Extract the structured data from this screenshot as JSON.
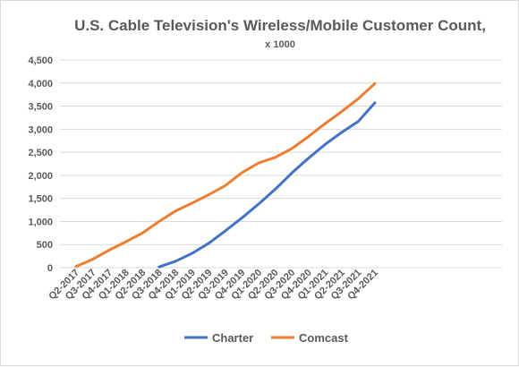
{
  "chart_data": {
    "type": "line",
    "title": "U.S. Cable Television's  Wireless/Mobile  Customer  Count,",
    "subtitle": "x 1000",
    "xlabel": "",
    "ylabel": "",
    "ylim": [
      0,
      4500
    ],
    "y_ticks": [
      0,
      500,
      1000,
      1500,
      2000,
      2500,
      3000,
      3500,
      4000,
      4500
    ],
    "y_tick_labels": [
      "0",
      "500",
      "1,000",
      "1,500",
      "2,000",
      "2,500",
      "3,000",
      "3,500",
      "4,000",
      "4,500"
    ],
    "grid": true,
    "legend_position": "bottom",
    "categories": [
      "Q2-2017",
      "Q3-2017",
      "Q4-2017",
      "Q1-2018",
      "Q2-2018",
      "Q3-2018",
      "Q4-2018",
      "Q1-2019",
      "Q2-2019",
      "Q3-2019",
      "Q4-2019",
      "Q1-2020",
      "Q2-2020",
      "Q3-2020",
      "Q4-2020",
      "Q1-2021",
      "Q2-2021",
      "Q3-2021",
      "Q4-2021"
    ],
    "series": [
      {
        "name": "Charter",
        "color": "#4472c4",
        "values": [
          null,
          null,
          null,
          null,
          null,
          15,
          140,
          310,
          530,
          800,
          1080,
          1380,
          1700,
          2050,
          2370,
          2670,
          2930,
          3170,
          3570
        ]
      },
      {
        "name": "Comcast",
        "color": "#ed7d31",
        "values": [
          25,
          180,
          380,
          560,
          750,
          1000,
          1230,
          1400,
          1580,
          1780,
          2060,
          2270,
          2390,
          2580,
          2840,
          3120,
          3380,
          3660,
          3990
        ]
      }
    ]
  }
}
